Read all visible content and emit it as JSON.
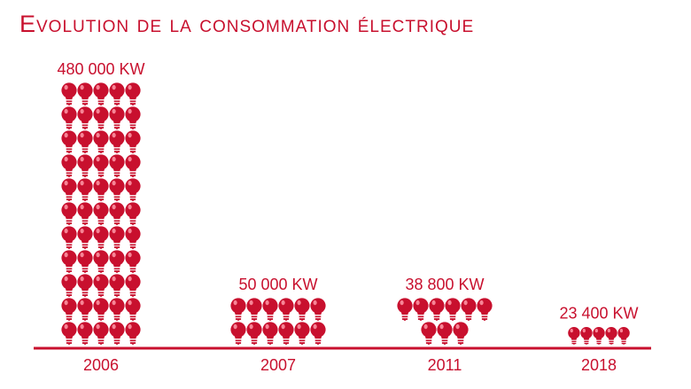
{
  "chart_data": {
    "type": "bar",
    "title": "Evolution de la consommation électrique",
    "categories": [
      "2006",
      "2007",
      "2011",
      "2018"
    ],
    "values": [
      480000,
      50000,
      38800,
      23400
    ],
    "data_labels": [
      "480 000 KW",
      "50 000 KW",
      "38 800 KW",
      "23 400 KW"
    ],
    "bulb_counts": [
      55,
      12,
      9,
      5
    ],
    "unit": "KW",
    "grid": false,
    "legend": "none",
    "colors": {
      "primary": "#c8102e",
      "highlight": "#ff9aa8",
      "base": "#ffffff"
    }
  }
}
